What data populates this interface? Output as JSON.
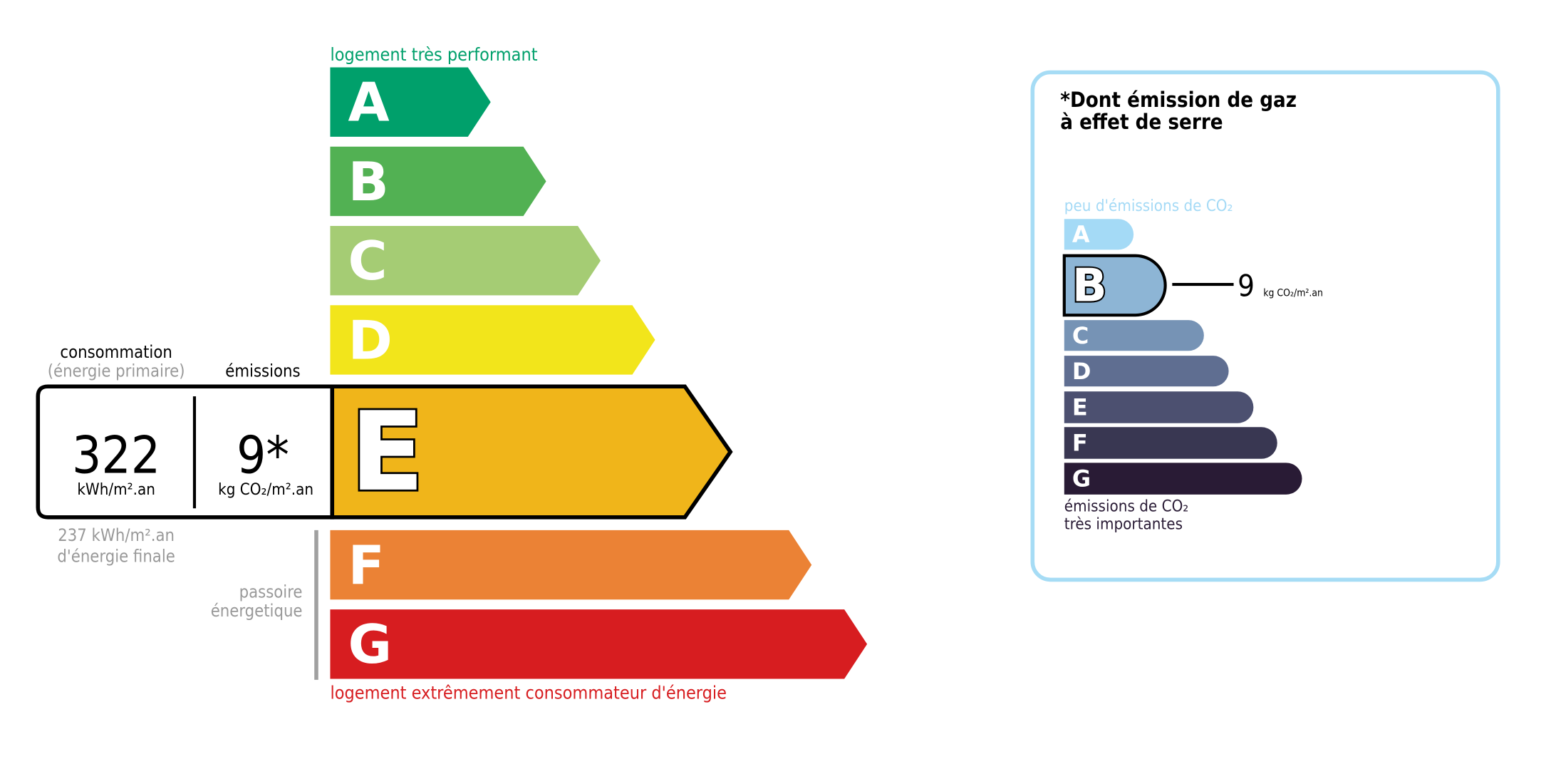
{
  "energy": {
    "top_label": "logement très performant",
    "bottom_label": "logement extrêmement consommateur d'énergie",
    "classes": [
      {
        "letter": "A",
        "color": "#00a06b"
      },
      {
        "letter": "B",
        "color": "#52b153"
      },
      {
        "letter": "C",
        "color": "#a5cc74"
      },
      {
        "letter": "D",
        "color": "#f2e51b"
      },
      {
        "letter": "E",
        "color": "#f0b51a"
      },
      {
        "letter": "F",
        "color": "#eb8235"
      },
      {
        "letter": "G",
        "color": "#d71d20"
      }
    ],
    "current_class": "E",
    "consumption_label": "consommation",
    "consumption_sublabel": "(énergie primaire)",
    "emissions_label": "émissions",
    "consumption_value": "322",
    "consumption_unit": "kWh/m².an",
    "emissions_value": "9*",
    "emissions_unit": "kg CO₂/m².an",
    "final_energy_value": "237 kWh/m².an",
    "final_energy_label": "d'énergie finale",
    "passoire_line1": "passoire",
    "passoire_line2": "énergetique",
    "top_color": "#00a06b",
    "bottom_color": "#d71d20"
  },
  "ges": {
    "title_line1": "*Dont émission de gaz",
    "title_line2": "à effet de serre",
    "top_label": "peu d'émissions de CO₂",
    "bottom_label_line1": "émissions de CO₂",
    "bottom_label_line2": "très importantes",
    "classes": [
      {
        "letter": "A",
        "color": "#a4daf6"
      },
      {
        "letter": "B",
        "color": "#8db5d5"
      },
      {
        "letter": "C",
        "color": "#7693b5"
      },
      {
        "letter": "D",
        "color": "#5f6e91"
      },
      {
        "letter": "E",
        "color": "#4c5070"
      },
      {
        "letter": "F",
        "color": "#393752"
      },
      {
        "letter": "G",
        "color": "#291b35"
      }
    ],
    "current_class": "B",
    "value": "9",
    "unit": "kg CO₂/m².an",
    "border_color": "#a6dcf5"
  }
}
